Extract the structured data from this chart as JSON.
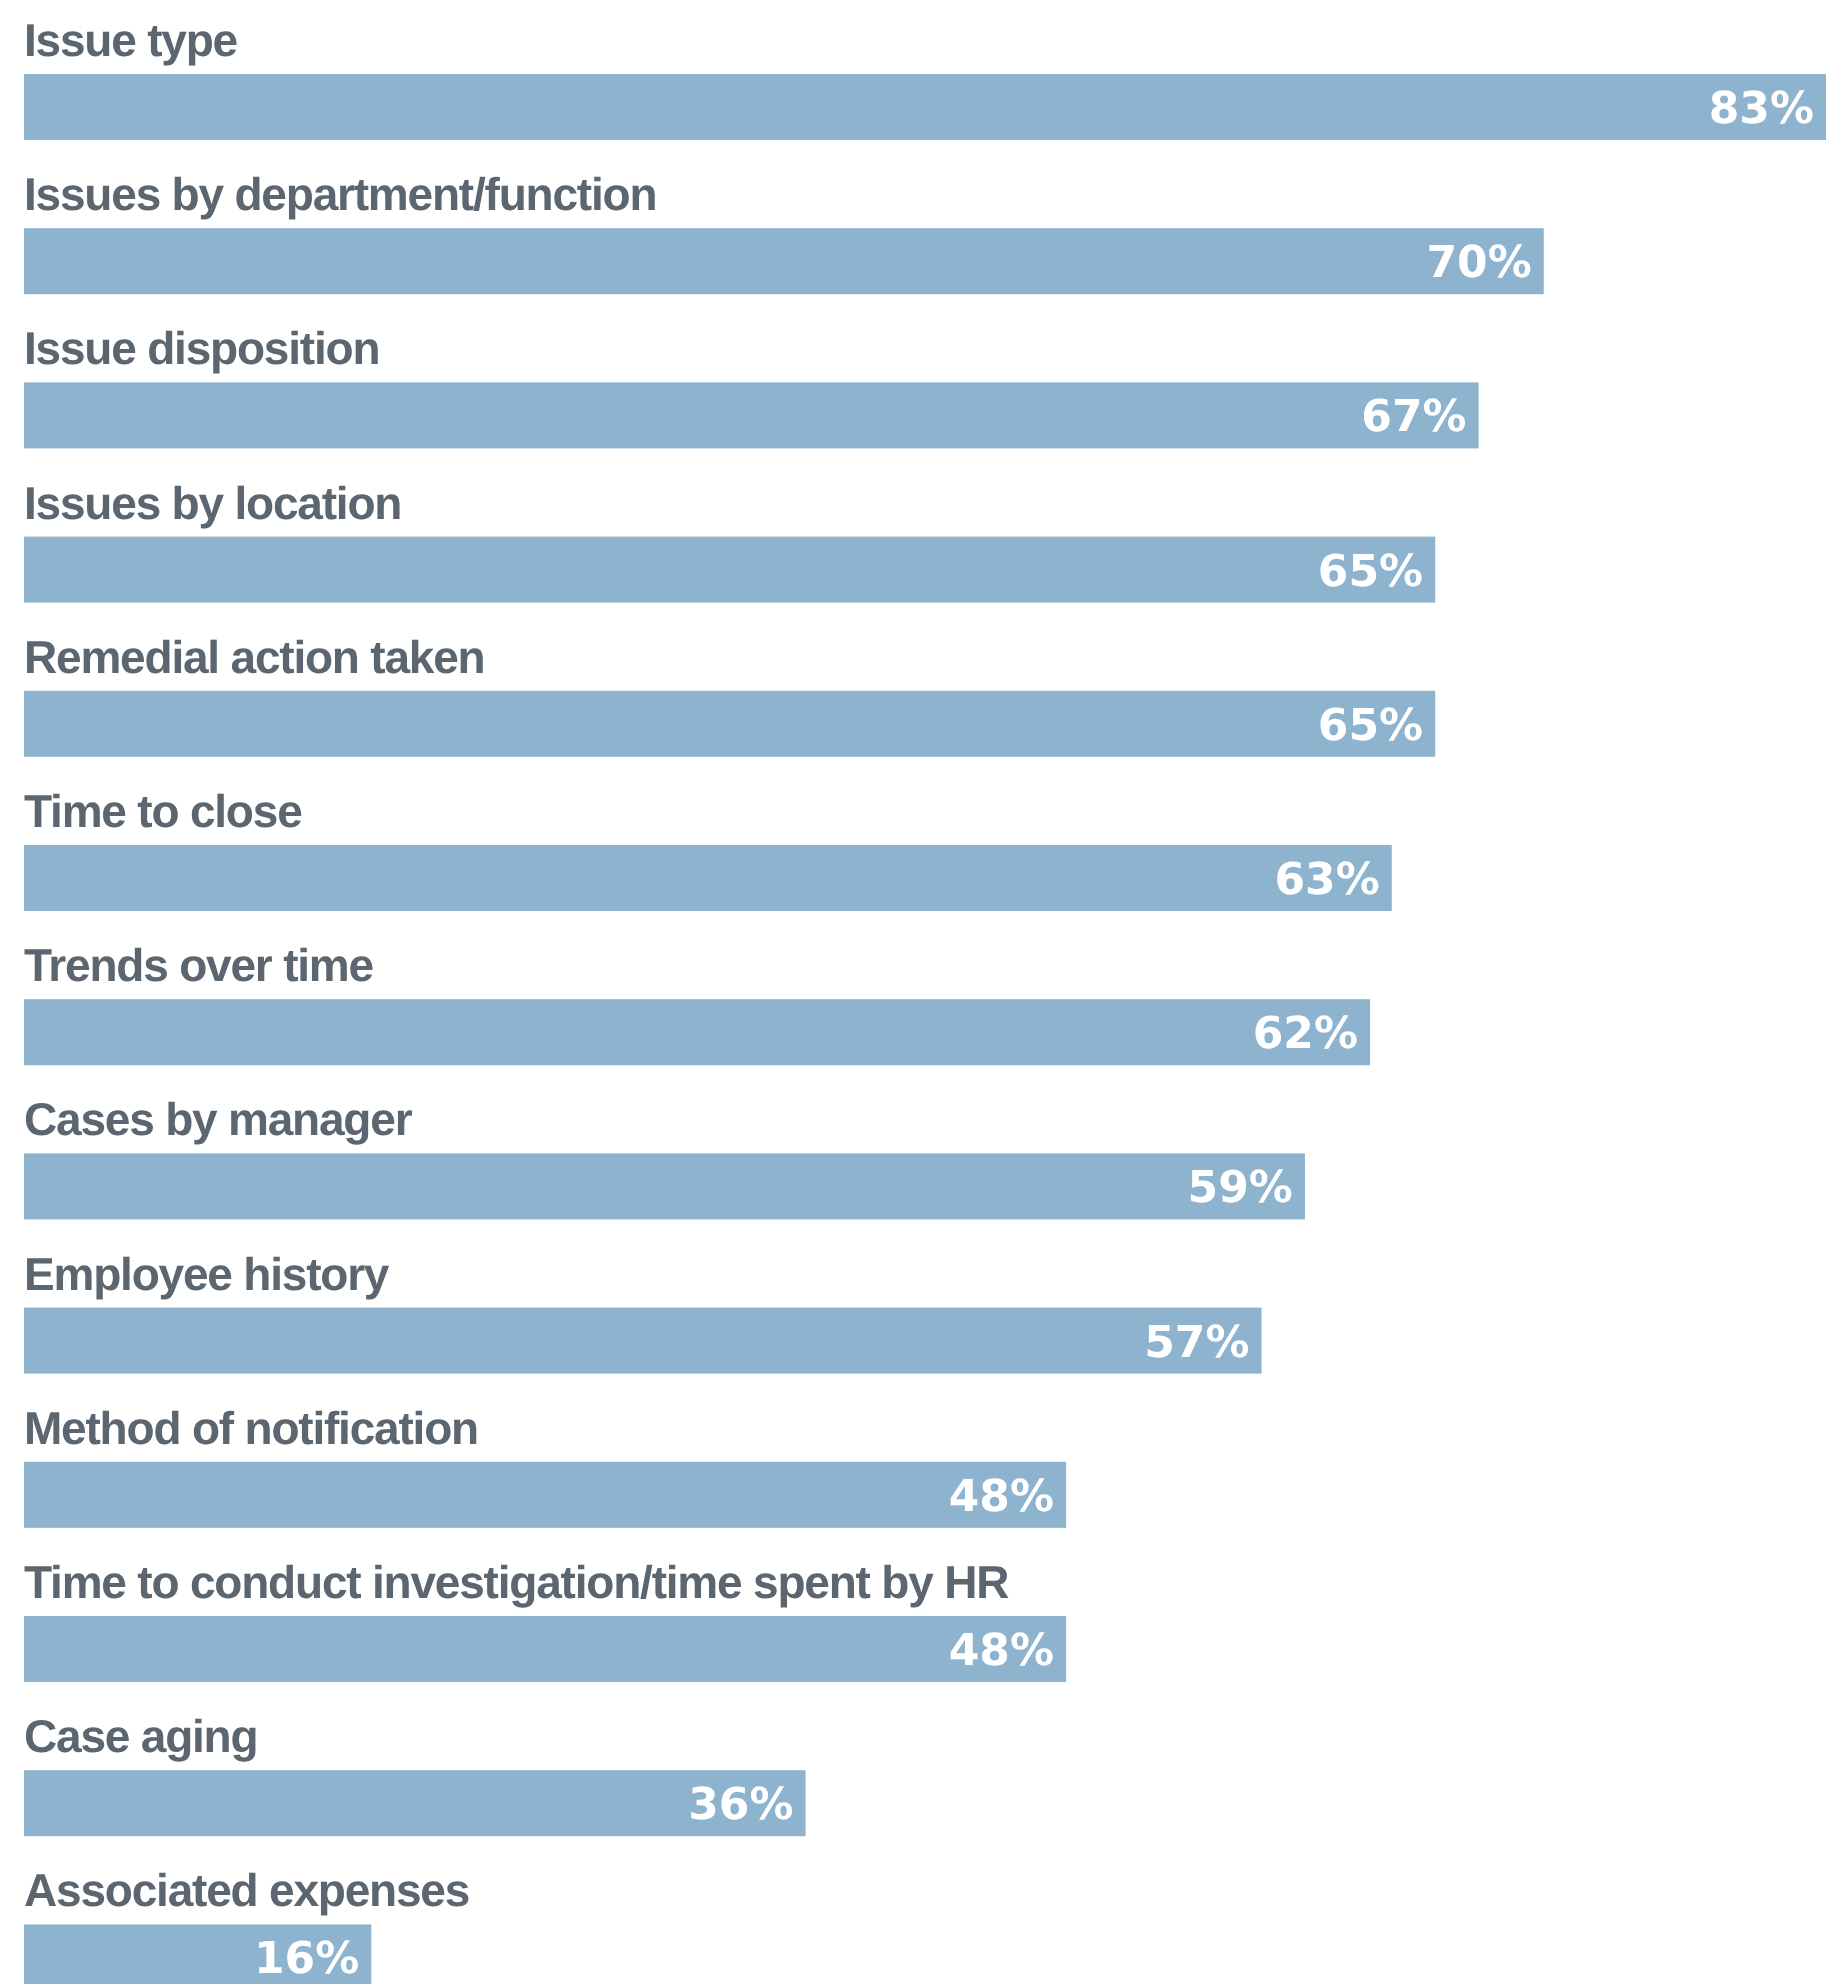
{
  "chart_data": {
    "type": "bar",
    "orientation": "horizontal",
    "categories": [
      "Issue type",
      "Issues by department/function",
      "Issue disposition",
      "Issues by location",
      "Remedial action taken",
      "Time to close",
      "Trends over time",
      "Cases by manager",
      "Employee history",
      "Method of notification",
      "Time to conduct investigation/time spent by HR",
      "Case aging",
      "Associated expenses"
    ],
    "values": [
      83,
      70,
      67,
      65,
      65,
      63,
      62,
      59,
      57,
      48,
      48,
      36,
      16
    ],
    "value_labels": [
      "83%",
      "70%",
      "67%",
      "65%",
      "65%",
      "63%",
      "62%",
      "59%",
      "57%",
      "48%",
      "48%",
      "36%",
      "16%"
    ],
    "color": "#8db3cf"
  }
}
